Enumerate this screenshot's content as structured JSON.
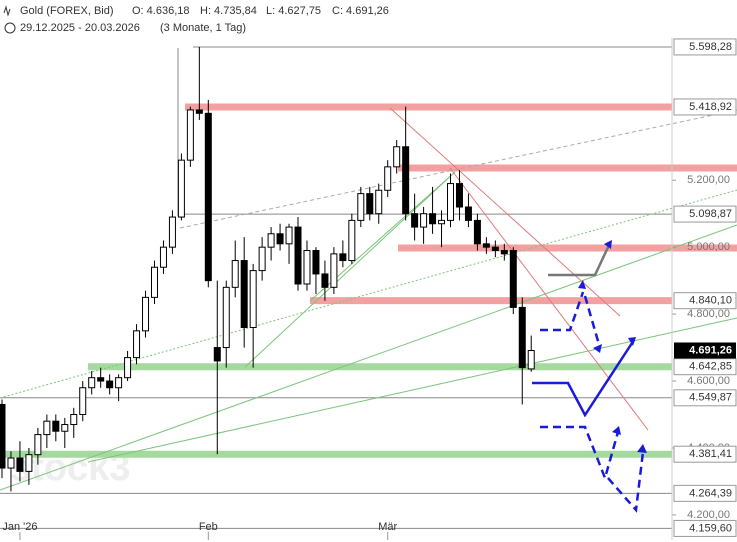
{
  "chart_data": {
    "type": "candlestick",
    "title": "Gold (FOREX, Bid)",
    "ohlc_header": [
      "O: 4.636,18",
      "H: 4.735,84",
      "L: 4.627,75",
      "C: 4.691,26"
    ],
    "period": "29.12.2025 - 20.03.2026",
    "period_note": "(3 Monate, 1 Tag)",
    "watermark": "stock3",
    "categories": [
      null,
      null,
      "Jan '26",
      null,
      null,
      null,
      null,
      null,
      null,
      null,
      null,
      null,
      null,
      null,
      null,
      null,
      null,
      null,
      null,
      null,
      null,
      null,
      null,
      "Feb",
      null,
      null,
      null,
      null,
      null,
      null,
      null,
      null,
      null,
      null,
      null,
      null,
      null,
      null,
      null,
      null,
      null,
      null,
      null,
      "Mär",
      null,
      null,
      null,
      null,
      null,
      null,
      null,
      null,
      null,
      null,
      null,
      null,
      null,
      null,
      null,
      null
    ],
    "open": [
      4530,
      4340,
      4370,
      4330,
      4380,
      4440,
      4480,
      4450,
      4470,
      4500,
      4580,
      4610,
      4600,
      4580,
      4610,
      4670,
      4750,
      4850,
      4940,
      5000,
      5090,
      5260,
      5410,
      5400,
      4700,
      4700,
      4880,
      4960,
      4760,
      4930,
      5000,
      5040,
      5010,
      5060,
      4890,
      4990,
      4920,
      4880,
      4980,
      4960,
      5080,
      5160,
      5100,
      5170,
      5240,
      5300,
      5100,
      5060,
      5100,
      5070,
      5080,
      5190,
      5120,
      5080,
      5010,
      5000,
      4990,
      4990,
      4820,
      4636.18
    ],
    "high": [
      4545,
      4390,
      4420,
      4400,
      4460,
      4500,
      4500,
      4490,
      4520,
      4600,
      4630,
      4640,
      4620,
      4620,
      4690,
      4770,
      4870,
      4960,
      5020,
      5110,
      5280,
      5420,
      5598.28,
      5440,
      4900,
      4900,
      5020,
      5030,
      4950,
      5030,
      5060,
      5070,
      5070,
      5090,
      5020,
      5000,
      4960,
      5000,
      5020,
      5100,
      5180,
      5180,
      5190,
      5260,
      5320,
      5420,
      5160,
      5120,
      5180,
      5110,
      5220,
      5230,
      5160,
      5100,
      5030,
      5020,
      5010,
      5000,
      4850,
      4735.84
    ],
    "low": [
      4310,
      4270,
      4300,
      4290,
      4350,
      4400,
      4420,
      4400,
      4430,
      4480,
      4560,
      4580,
      4560,
      4540,
      4600,
      4650,
      4730,
      4830,
      4920,
      4980,
      5080,
      5240,
      5380,
      4880,
      4381.41,
      4640,
      4850,
      4700,
      4640,
      4900,
      4960,
      4990,
      4950,
      4870,
      4870,
      4860,
      4840,
      4860,
      4940,
      4950,
      5060,
      5080,
      5070,
      5150,
      5220,
      5080,
      5020,
      5010,
      5040,
      5000,
      5060,
      5080,
      5060,
      4990,
      4980,
      4970,
      4960,
      4800,
      4530,
      4627.75
    ],
    "close": [
      4340,
      4370,
      4330,
      4380,
      4440,
      4480,
      4450,
      4470,
      4500,
      4580,
      4610,
      4600,
      4580,
      4610,
      4670,
      4750,
      4850,
      4940,
      5000,
      5090,
      5260,
      5410,
      5400,
      4900,
      4660,
      4880,
      4960,
      4760,
      4930,
      5000,
      5040,
      5010,
      5060,
      4890,
      4990,
      4920,
      4880,
      4980,
      4960,
      5080,
      5160,
      5100,
      5170,
      5240,
      5300,
      5100,
      5060,
      5100,
      5070,
      5080,
      5190,
      5120,
      5080,
      5010,
      5000,
      4990,
      4980,
      4820,
      4640,
      4691.26
    ],
    "up_color": "#ffffff",
    "down_color": "#000000",
    "ylim": [
      4125,
      5625
    ],
    "yticks": [
      {
        "value": 4200,
        "label": "4.200,00"
      },
      {
        "value": 4400,
        "label": "4.400,00"
      },
      {
        "value": 4600,
        "label": "4.600,00"
      },
      {
        "value": 4800,
        "label": "4.800,00"
      },
      {
        "value": 5000,
        "label": "5.000,00"
      },
      {
        "value": 5200,
        "label": "5.200,00"
      }
    ],
    "levels": [
      {
        "value": 5598.28,
        "label": "5.598,28",
        "color": "#888888"
      },
      {
        "value": 5418.92,
        "label": "5.418,92",
        "color": "#f2a0a0"
      },
      {
        "value": 5098.87,
        "label": "5.098,87",
        "color": "#888888"
      },
      {
        "value": 4840.1,
        "label": "4.840,10",
        "color": "#f2a0a0"
      },
      {
        "value": 4642.85,
        "label": "4.642,85",
        "color": "#a6d9a0"
      },
      {
        "value": 4549.87,
        "label": "4.549,87",
        "color": "#888888"
      },
      {
        "value": 4381.41,
        "label": "4.381,41",
        "color": "#a6d9a0"
      },
      {
        "value": 4264.39,
        "label": "4.264,39",
        "color": "#888888"
      },
      {
        "value": 4159.6,
        "label": "4.159,60",
        "color": "#888888"
      }
    ],
    "last_price": {
      "value": 4691.26,
      "label": "4.691,26"
    }
  }
}
